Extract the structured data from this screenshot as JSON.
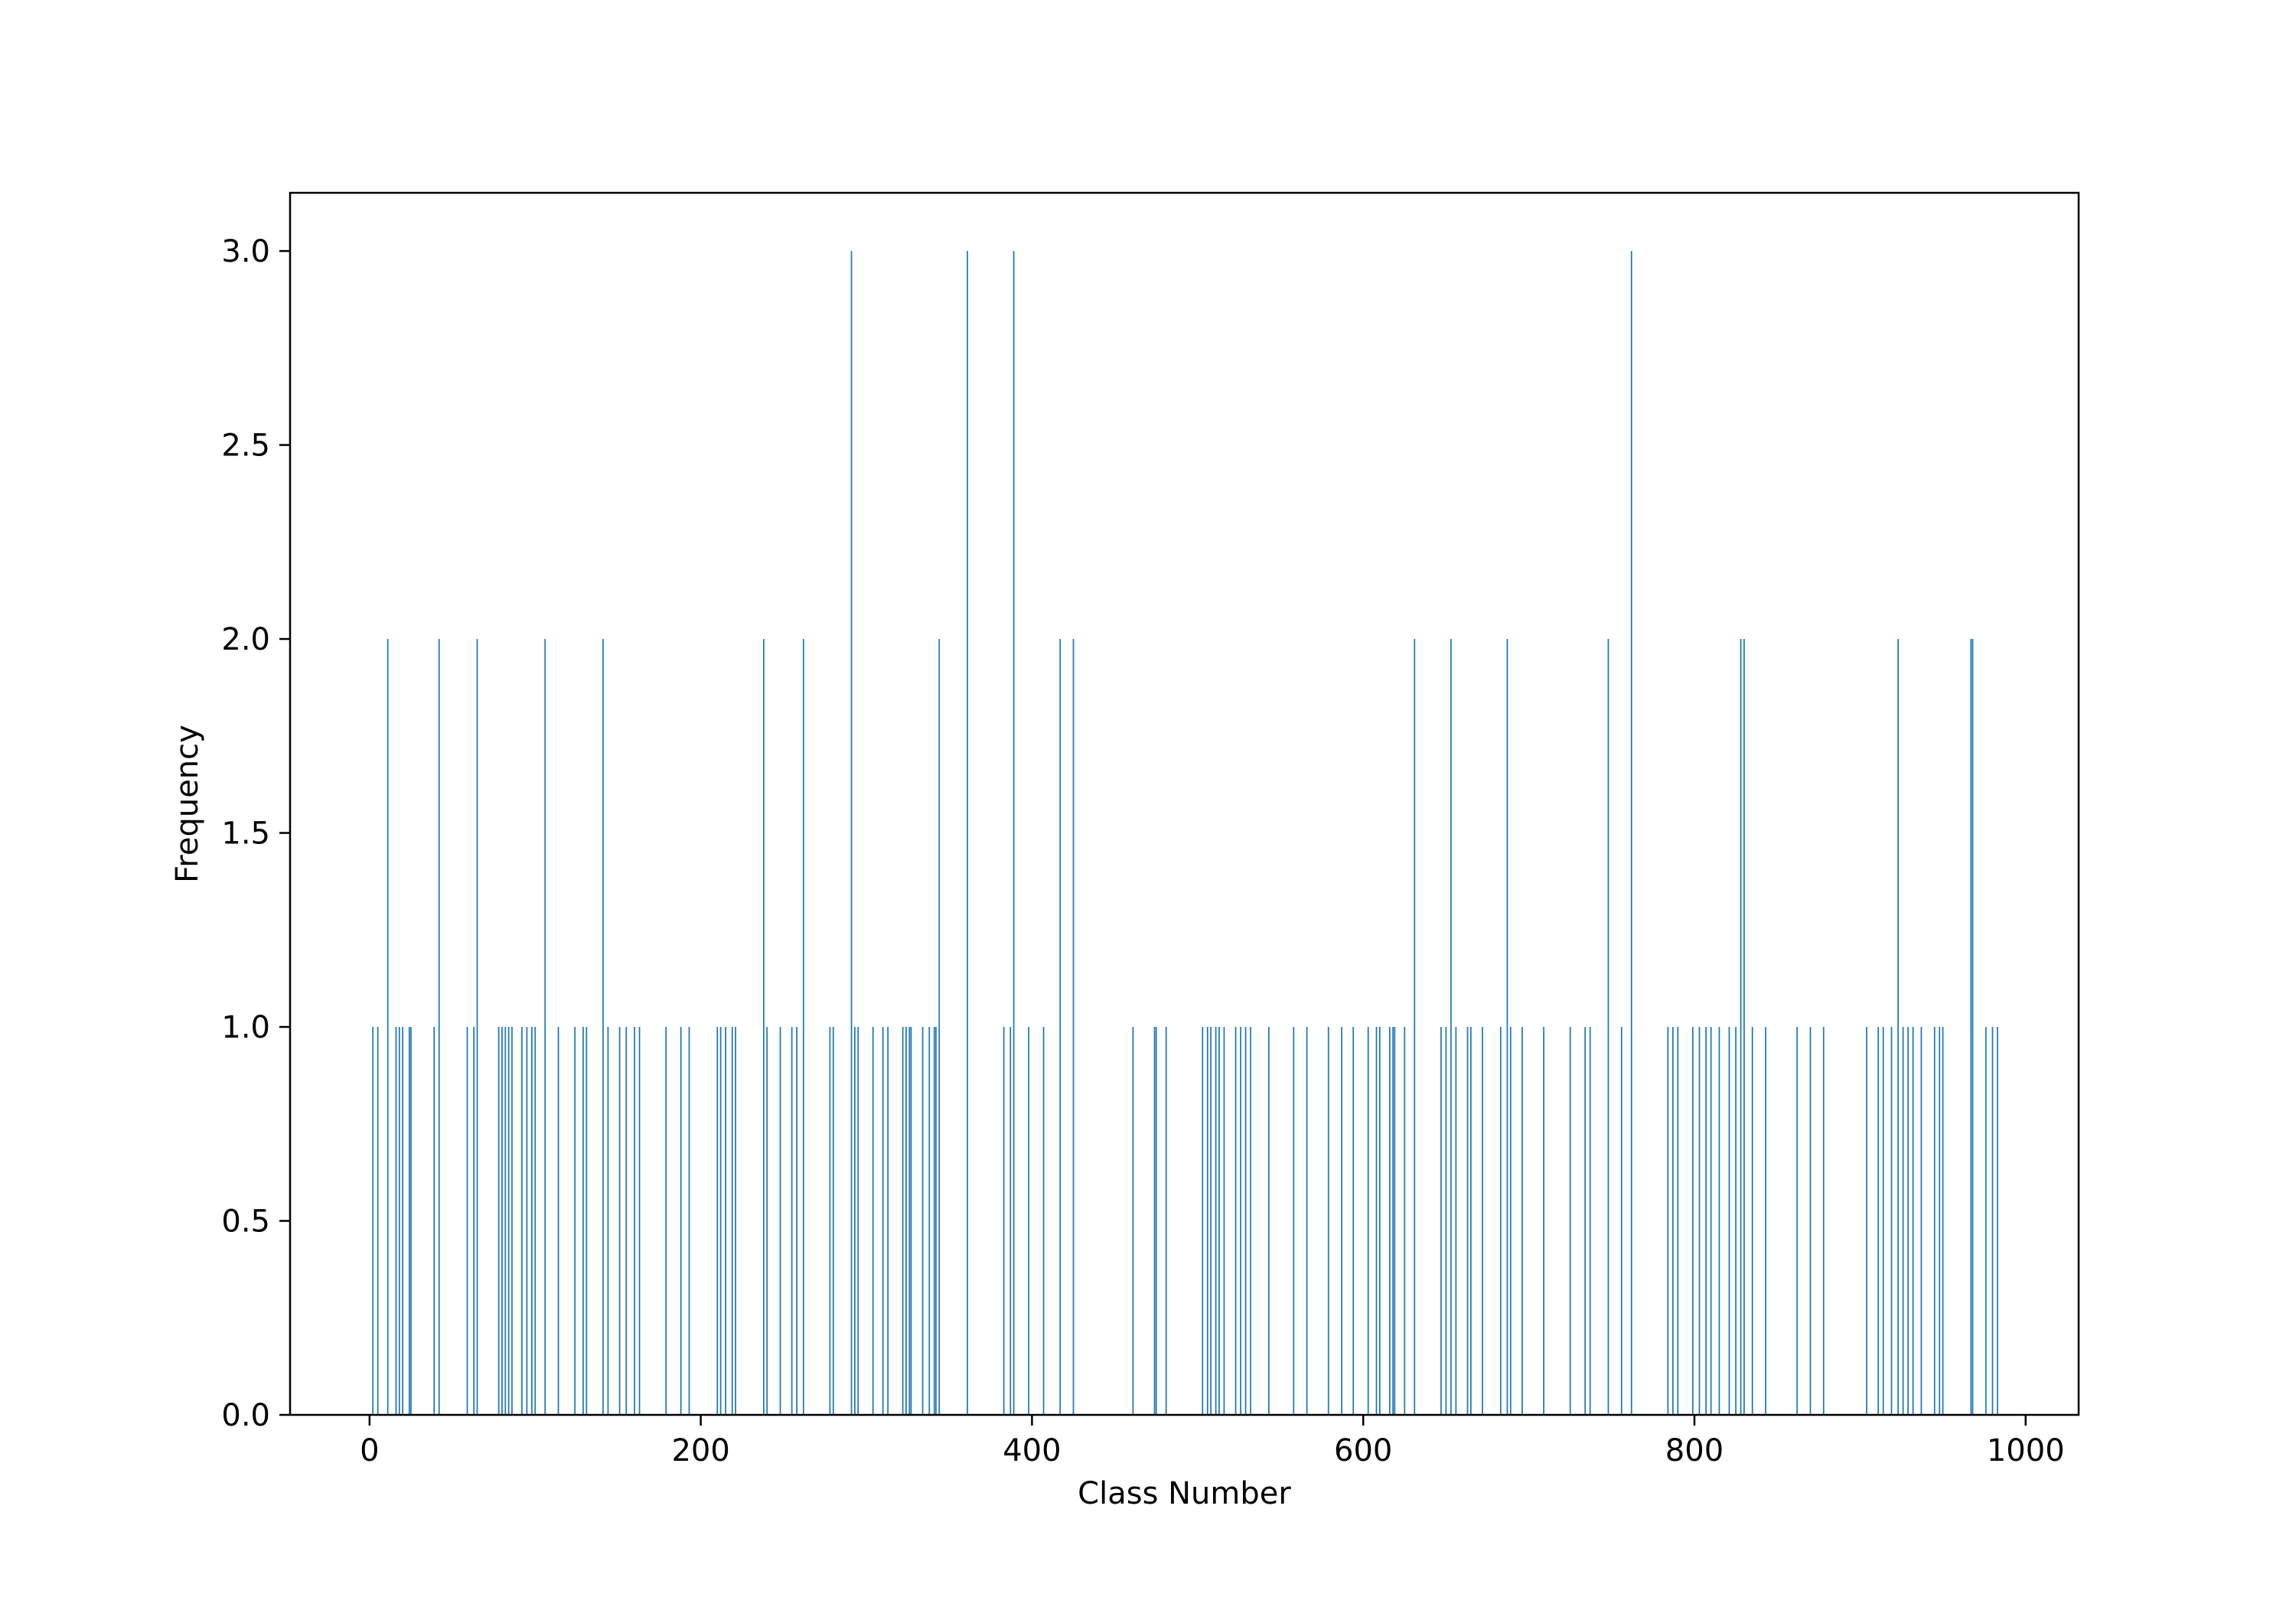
{
  "chart_data": {
    "type": "bar",
    "xlabel": "Class Number",
    "ylabel": "Frequency",
    "xlim": [
      -48,
      1032
    ],
    "ylim": [
      0,
      3.15
    ],
    "xticks": [
      0,
      200,
      400,
      600,
      800,
      1000
    ],
    "yticks": [
      0.0,
      0.5,
      1.0,
      1.5,
      2.0,
      2.5,
      3.0
    ],
    "xtick_labels": [
      "0",
      "200",
      "400",
      "600",
      "800",
      "1000"
    ],
    "ytick_labels": [
      "0.0",
      "0.5",
      "1.0",
      "1.5",
      "2.0",
      "2.5",
      "3.0"
    ],
    "grid": false,
    "bar_color": "#1f77b4",
    "bars": [
      {
        "x": 2,
        "y": 1
      },
      {
        "x": 5,
        "y": 1
      },
      {
        "x": 11,
        "y": 2
      },
      {
        "x": 16,
        "y": 1
      },
      {
        "x": 18,
        "y": 1
      },
      {
        "x": 20,
        "y": 1
      },
      {
        "x": 24,
        "y": 1
      },
      {
        "x": 25,
        "y": 1
      },
      {
        "x": 39,
        "y": 1
      },
      {
        "x": 42,
        "y": 2
      },
      {
        "x": 59,
        "y": 1
      },
      {
        "x": 63,
        "y": 1
      },
      {
        "x": 65,
        "y": 2
      },
      {
        "x": 78,
        "y": 1
      },
      {
        "x": 80,
        "y": 1
      },
      {
        "x": 82,
        "y": 1
      },
      {
        "x": 84,
        "y": 1
      },
      {
        "x": 86,
        "y": 1
      },
      {
        "x": 92,
        "y": 1
      },
      {
        "x": 95,
        "y": 1
      },
      {
        "x": 98,
        "y": 1
      },
      {
        "x": 100,
        "y": 1
      },
      {
        "x": 106,
        "y": 2
      },
      {
        "x": 114,
        "y": 1
      },
      {
        "x": 124,
        "y": 1
      },
      {
        "x": 129,
        "y": 1
      },
      {
        "x": 131,
        "y": 1
      },
      {
        "x": 141,
        "y": 2
      },
      {
        "x": 144,
        "y": 1
      },
      {
        "x": 151,
        "y": 1
      },
      {
        "x": 155,
        "y": 1
      },
      {
        "x": 160,
        "y": 1
      },
      {
        "x": 163,
        "y": 1
      },
      {
        "x": 179,
        "y": 1
      },
      {
        "x": 188,
        "y": 1
      },
      {
        "x": 193,
        "y": 1
      },
      {
        "x": 210,
        "y": 1
      },
      {
        "x": 212,
        "y": 1
      },
      {
        "x": 215,
        "y": 1
      },
      {
        "x": 219,
        "y": 1
      },
      {
        "x": 221,
        "y": 1
      },
      {
        "x": 238,
        "y": 2
      },
      {
        "x": 240,
        "y": 1
      },
      {
        "x": 248,
        "y": 1
      },
      {
        "x": 255,
        "y": 1
      },
      {
        "x": 258,
        "y": 1
      },
      {
        "x": 262,
        "y": 2
      },
      {
        "x": 278,
        "y": 1
      },
      {
        "x": 280,
        "y": 1
      },
      {
        "x": 291,
        "y": 3
      },
      {
        "x": 293,
        "y": 1
      },
      {
        "x": 295,
        "y": 1
      },
      {
        "x": 304,
        "y": 1
      },
      {
        "x": 310,
        "y": 1
      },
      {
        "x": 313,
        "y": 1
      },
      {
        "x": 322,
        "y": 1
      },
      {
        "x": 324,
        "y": 1
      },
      {
        "x": 326,
        "y": 1
      },
      {
        "x": 327,
        "y": 1
      },
      {
        "x": 334,
        "y": 1
      },
      {
        "x": 338,
        "y": 1
      },
      {
        "x": 341,
        "y": 1
      },
      {
        "x": 342,
        "y": 1
      },
      {
        "x": 344,
        "y": 2
      },
      {
        "x": 361,
        "y": 3
      },
      {
        "x": 383,
        "y": 1
      },
      {
        "x": 387,
        "y": 1
      },
      {
        "x": 389,
        "y": 3
      },
      {
        "x": 398,
        "y": 1
      },
      {
        "x": 407,
        "y": 1
      },
      {
        "x": 417,
        "y": 2
      },
      {
        "x": 425,
        "y": 2
      },
      {
        "x": 461,
        "y": 1
      },
      {
        "x": 474,
        "y": 1
      },
      {
        "x": 475,
        "y": 1
      },
      {
        "x": 481,
        "y": 1
      },
      {
        "x": 503,
        "y": 1
      },
      {
        "x": 506,
        "y": 1
      },
      {
        "x": 508,
        "y": 1
      },
      {
        "x": 511,
        "y": 1
      },
      {
        "x": 513,
        "y": 1
      },
      {
        "x": 516,
        "y": 1
      },
      {
        "x": 523,
        "y": 1
      },
      {
        "x": 526,
        "y": 1
      },
      {
        "x": 529,
        "y": 1
      },
      {
        "x": 532,
        "y": 1
      },
      {
        "x": 543,
        "y": 1
      },
      {
        "x": 558,
        "y": 1
      },
      {
        "x": 566,
        "y": 1
      },
      {
        "x": 579,
        "y": 1
      },
      {
        "x": 587,
        "y": 1
      },
      {
        "x": 594,
        "y": 1
      },
      {
        "x": 603,
        "y": 1
      },
      {
        "x": 608,
        "y": 1
      },
      {
        "x": 610,
        "y": 1
      },
      {
        "x": 616,
        "y": 1
      },
      {
        "x": 618,
        "y": 1
      },
      {
        "x": 619,
        "y": 1
      },
      {
        "x": 625,
        "y": 1
      },
      {
        "x": 631,
        "y": 2
      },
      {
        "x": 647,
        "y": 1
      },
      {
        "x": 650,
        "y": 1
      },
      {
        "x": 653,
        "y": 2
      },
      {
        "x": 656,
        "y": 1
      },
      {
        "x": 663,
        "y": 1
      },
      {
        "x": 665,
        "y": 1
      },
      {
        "x": 672,
        "y": 1
      },
      {
        "x": 683,
        "y": 1
      },
      {
        "x": 687,
        "y": 2
      },
      {
        "x": 689,
        "y": 1
      },
      {
        "x": 696,
        "y": 1
      },
      {
        "x": 709,
        "y": 1
      },
      {
        "x": 725,
        "y": 1
      },
      {
        "x": 734,
        "y": 1
      },
      {
        "x": 737,
        "y": 1
      },
      {
        "x": 748,
        "y": 2
      },
      {
        "x": 756,
        "y": 1
      },
      {
        "x": 762,
        "y": 3
      },
      {
        "x": 784,
        "y": 1
      },
      {
        "x": 787,
        "y": 1
      },
      {
        "x": 790,
        "y": 1
      },
      {
        "x": 799,
        "y": 1
      },
      {
        "x": 803,
        "y": 1
      },
      {
        "x": 807,
        "y": 1
      },
      {
        "x": 810,
        "y": 1
      },
      {
        "x": 815,
        "y": 1
      },
      {
        "x": 821,
        "y": 1
      },
      {
        "x": 825,
        "y": 1
      },
      {
        "x": 828,
        "y": 2
      },
      {
        "x": 830,
        "y": 2
      },
      {
        "x": 835,
        "y": 1
      },
      {
        "x": 843,
        "y": 1
      },
      {
        "x": 862,
        "y": 1
      },
      {
        "x": 870,
        "y": 1
      },
      {
        "x": 878,
        "y": 1
      },
      {
        "x": 904,
        "y": 1
      },
      {
        "x": 911,
        "y": 1
      },
      {
        "x": 914,
        "y": 1
      },
      {
        "x": 919,
        "y": 1
      },
      {
        "x": 923,
        "y": 2
      },
      {
        "x": 926,
        "y": 1
      },
      {
        "x": 929,
        "y": 1
      },
      {
        "x": 932,
        "y": 1
      },
      {
        "x": 937,
        "y": 1
      },
      {
        "x": 945,
        "y": 1
      },
      {
        "x": 948,
        "y": 1
      },
      {
        "x": 950,
        "y": 1
      },
      {
        "x": 967,
        "y": 2
      },
      {
        "x": 968,
        "y": 2
      },
      {
        "x": 976,
        "y": 1
      },
      {
        "x": 980,
        "y": 1
      },
      {
        "x": 983,
        "y": 1
      }
    ]
  }
}
